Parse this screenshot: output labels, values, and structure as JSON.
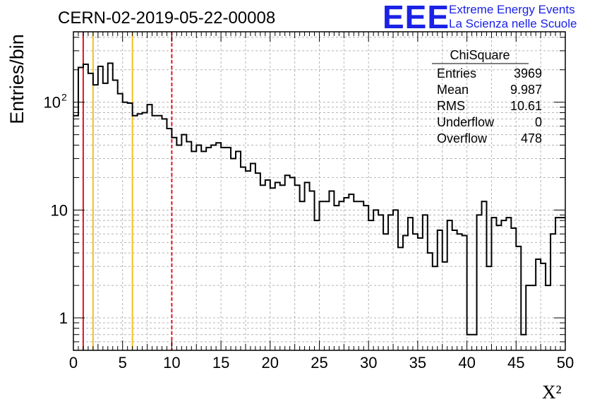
{
  "chart_data": {
    "type": "histogram",
    "title": "CERN-02-2019-05-22-00008",
    "xlabel": "X²",
    "ylabel": "Entries/bin",
    "xlim": [
      0,
      50
    ],
    "ylim": [
      0.5,
      450
    ],
    "yscale": "log",
    "grid": true,
    "bin_width": 0.5,
    "x_ticks": [
      "0",
      "5",
      "10",
      "15",
      "20",
      "25",
      "30",
      "35",
      "40",
      "45",
      "50"
    ],
    "y_ticks": [
      {
        "value": 1,
        "label": "1"
      },
      {
        "value": 10,
        "label": "10"
      },
      {
        "value": 100,
        "label": "10",
        "exponent": "2"
      }
    ],
    "values": [
      75,
      210,
      225,
      185,
      145,
      215,
      150,
      230,
      160,
      120,
      100,
      98,
      75,
      78,
      80,
      95,
      75,
      75,
      70,
      57,
      47,
      40,
      50,
      43,
      35,
      40,
      35,
      38,
      40,
      42,
      38,
      38,
      30,
      35,
      25,
      23,
      27,
      22,
      17,
      19,
      16,
      18,
      17,
      21,
      20,
      17,
      12,
      18,
      15,
      8,
      12,
      12,
      15,
      11,
      12,
      13,
      14,
      12,
      12,
      11,
      8,
      10,
      9,
      6,
      9,
      10,
      4.5,
      5.8,
      8.5,
      6,
      5.5,
      9,
      4,
      3,
      6.5,
      3.3,
      8,
      6.5,
      6,
      5.8,
      0.7,
      0.7,
      9,
      12,
      3,
      8.5,
      7.2,
      8,
      8.5,
      6.8,
      4.6,
      0.7,
      2,
      2,
      3.5,
      3.2,
      2,
      6,
      8.5,
      8.5
    ],
    "vertical_lines": [
      {
        "x": 1,
        "color": "#e8141c",
        "style": "solid"
      },
      {
        "x": 2,
        "color": "#f0c21e",
        "style": "solid"
      },
      {
        "x": 6,
        "color": "#f0c21e",
        "style": "solid"
      },
      {
        "x": 10,
        "color": "#e8141c",
        "style": "dashed"
      }
    ],
    "line_color": "#000000",
    "stats_box": {
      "title": "ChiSquare",
      "rows": [
        {
          "label": "Entries",
          "value": "3969"
        },
        {
          "label": "Mean",
          "value": "9.987"
        },
        {
          "label": "RMS",
          "value": "10.61"
        },
        {
          "label": "Underflow",
          "value": "0"
        },
        {
          "label": "Overflow",
          "value": "478"
        }
      ]
    }
  },
  "logo": {
    "mark": "EEE",
    "line1": "Extreme Energy Events",
    "line2": "La Scienza nelle Scuole",
    "color": "#1a22e6"
  }
}
